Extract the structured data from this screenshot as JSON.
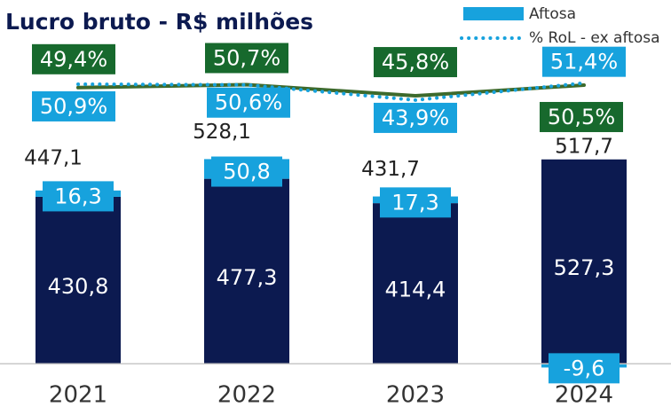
{
  "chart_data": {
    "type": "bar",
    "title": "Lucro bruto - R$ milhões",
    "categories": [
      "2021",
      "2022",
      "2023",
      "2024"
    ],
    "ylim": [
      -20,
      600
    ],
    "y2lim": [
      0,
      60
    ],
    "series": [
      {
        "color": "#0c1a50",
        "values": [
          430.8,
          477.3,
          414.4,
          527.3
        ],
        "value_labels": [
          "430,8",
          "477,3",
          "414,4",
          "527,3"
        ]
      },
      {
        "name": "Aftosa",
        "color": "#17a2dd",
        "values": [
          16.3,
          50.8,
          17.3,
          -9.6
        ],
        "value_labels": [
          "16,3",
          "50,8",
          "17,3",
          "-9,6"
        ]
      },
      {
        "type": "line",
        "axis": "y2",
        "color": "#3d6a2c",
        "label_color": "#17692d",
        "values": [
          49.4,
          50.7,
          45.8,
          50.5
        ],
        "value_labels": [
          "49,4%",
          "50,7%",
          "45,8%",
          "50,5%"
        ]
      },
      {
        "name": "% RoL - ex aftosa",
        "type": "line",
        "style": "dotted",
        "axis": "y2",
        "color": "#17a2dd",
        "values": [
          50.9,
          50.6,
          43.9,
          51.4
        ],
        "value_labels": [
          "50,9%",
          "50,6%",
          "43,9%",
          "51,4%"
        ]
      }
    ],
    "totals": {
      "values": [
        447.1,
        528.1,
        431.7,
        517.7
      ],
      "value_labels": [
        "447,1",
        "528,1",
        "431,7",
        "517,7"
      ]
    }
  }
}
